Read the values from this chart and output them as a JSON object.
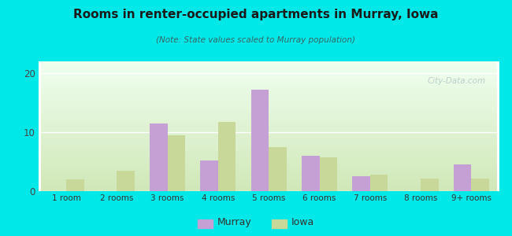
{
  "categories": [
    "1 room",
    "2 rooms",
    "3 rooms",
    "4 rooms",
    "5 rooms",
    "6 rooms",
    "7 rooms",
    "8 rooms",
    "9+ rooms"
  ],
  "murray": [
    0,
    0,
    11.5,
    5.2,
    17.2,
    6.0,
    2.5,
    0,
    4.5
  ],
  "iowa": [
    2.0,
    3.5,
    9.5,
    11.8,
    7.5,
    5.8,
    2.8,
    2.2,
    2.2
  ],
  "murray_color": "#c4a0d4",
  "iowa_color": "#c8d898",
  "title": "Rooms in renter-occupied apartments in Murray, Iowa",
  "subtitle": "(Note: State values scaled to Murray population)",
  "background_outer": "#00e8e8",
  "background_inner_top": "#f0fff0",
  "background_inner_bottom": "#d0e8b8",
  "ylim": [
    0,
    22
  ],
  "yticks": [
    0,
    10,
    20
  ],
  "legend_murray": "Murray",
  "legend_iowa": "Iowa",
  "bar_width": 0.35,
  "watermark": "City-Data.com"
}
